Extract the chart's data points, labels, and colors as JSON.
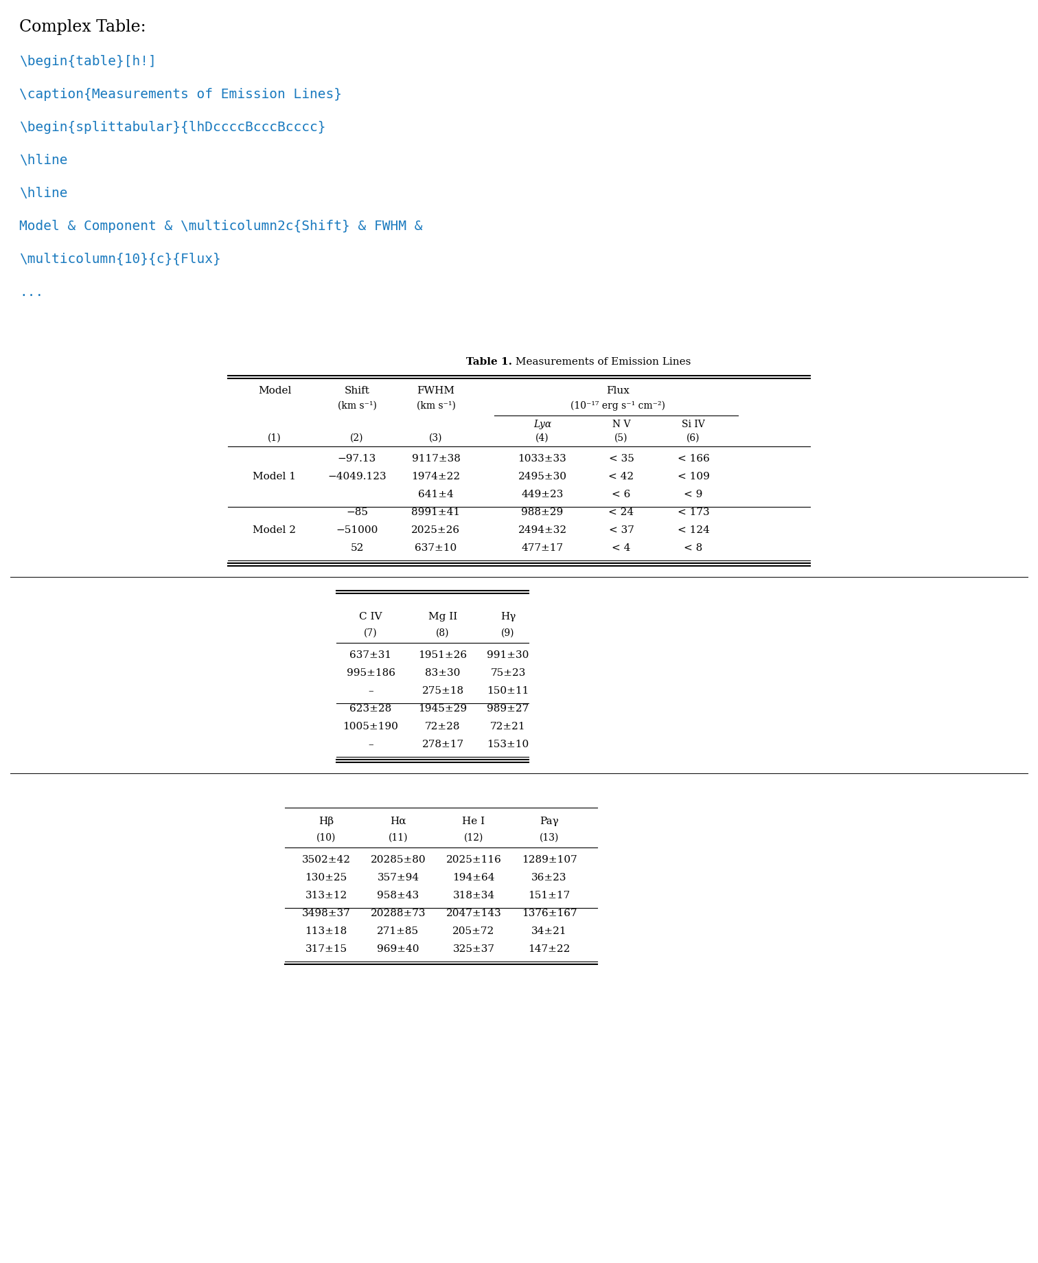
{
  "title_text": "Complex Table:",
  "latex_lines": [
    "\\begin{table}[h!]",
    "",
    "\\caption{Measurements of Emission Lines}",
    "",
    "\\begin{splittabular}{lhDccccBcccBcccc}",
    "",
    "\\hline",
    "",
    "\\hline",
    "",
    "Model & Component & \\multicolumn2c{Shift} & FWHM &",
    "",
    "\\multicolumn{10}{c}{Flux}",
    "",
    "..."
  ],
  "latex_color": "#1a7abf",
  "latex_size": 14,
  "table_caption_bold": "Table 1.",
  "table_caption_normal": " Measurements of Emission Lines",
  "bg_color": "white",
  "part1": {
    "rows": [
      [
        "",
        "−97.13",
        "9117±38",
        "1033±33",
        "< 35",
        "< 166"
      ],
      [
        "Model 1",
        "−4049.123",
        "1974±22",
        "2495±30",
        "< 42",
        "< 109"
      ],
      [
        "",
        "",
        "641±4",
        "449±23",
        "< 6",
        "< 9"
      ],
      [
        "",
        "−85",
        "8991±41",
        "988±29",
        "< 24",
        "< 173"
      ],
      [
        "Model 2",
        "−51000",
        "2025±26",
        "2494±32",
        "< 37",
        "< 124"
      ],
      [
        "",
        "52",
        "637±10",
        "477±17",
        "< 4",
        "< 8"
      ]
    ],
    "hlines_after": [
      2,
      5
    ]
  },
  "part2": {
    "col_headers": [
      "C IV",
      "Mg II",
      "Hγ"
    ],
    "col_numbers": [
      "(7)",
      "(8)",
      "(9)"
    ],
    "rows": [
      [
        "637±31",
        "1951±26",
        "991±30"
      ],
      [
        "995±186",
        "83±30",
        "75±23"
      ],
      [
        "–",
        "275±18",
        "150±11"
      ],
      [
        "623±28",
        "1945±29",
        "989±27"
      ],
      [
        "1005±190",
        "72±28",
        "72±21"
      ],
      [
        "–",
        "278±17",
        "153±10"
      ]
    ],
    "hlines_after": [
      2,
      5
    ]
  },
  "part3": {
    "col_headers": [
      "Hβ",
      "Hα",
      "He I",
      "Paγ"
    ],
    "col_numbers": [
      "(10)",
      "(11)",
      "(12)",
      "(13)"
    ],
    "rows": [
      [
        "3502±42",
        "20285±80",
        "2025±116",
        "1289±107"
      ],
      [
        "130±25",
        "357±94",
        "194±64",
        "36±23"
      ],
      [
        "313±12",
        "958±43",
        "318±34",
        "151±17"
      ],
      [
        "3498±37",
        "20288±73",
        "2047±143",
        "1376±167"
      ],
      [
        "113±18",
        "271±85",
        "205±72",
        "34±21"
      ],
      [
        "317±15",
        "969±40",
        "325±37",
        "147±22"
      ]
    ],
    "hlines_after": [
      2,
      5
    ]
  }
}
